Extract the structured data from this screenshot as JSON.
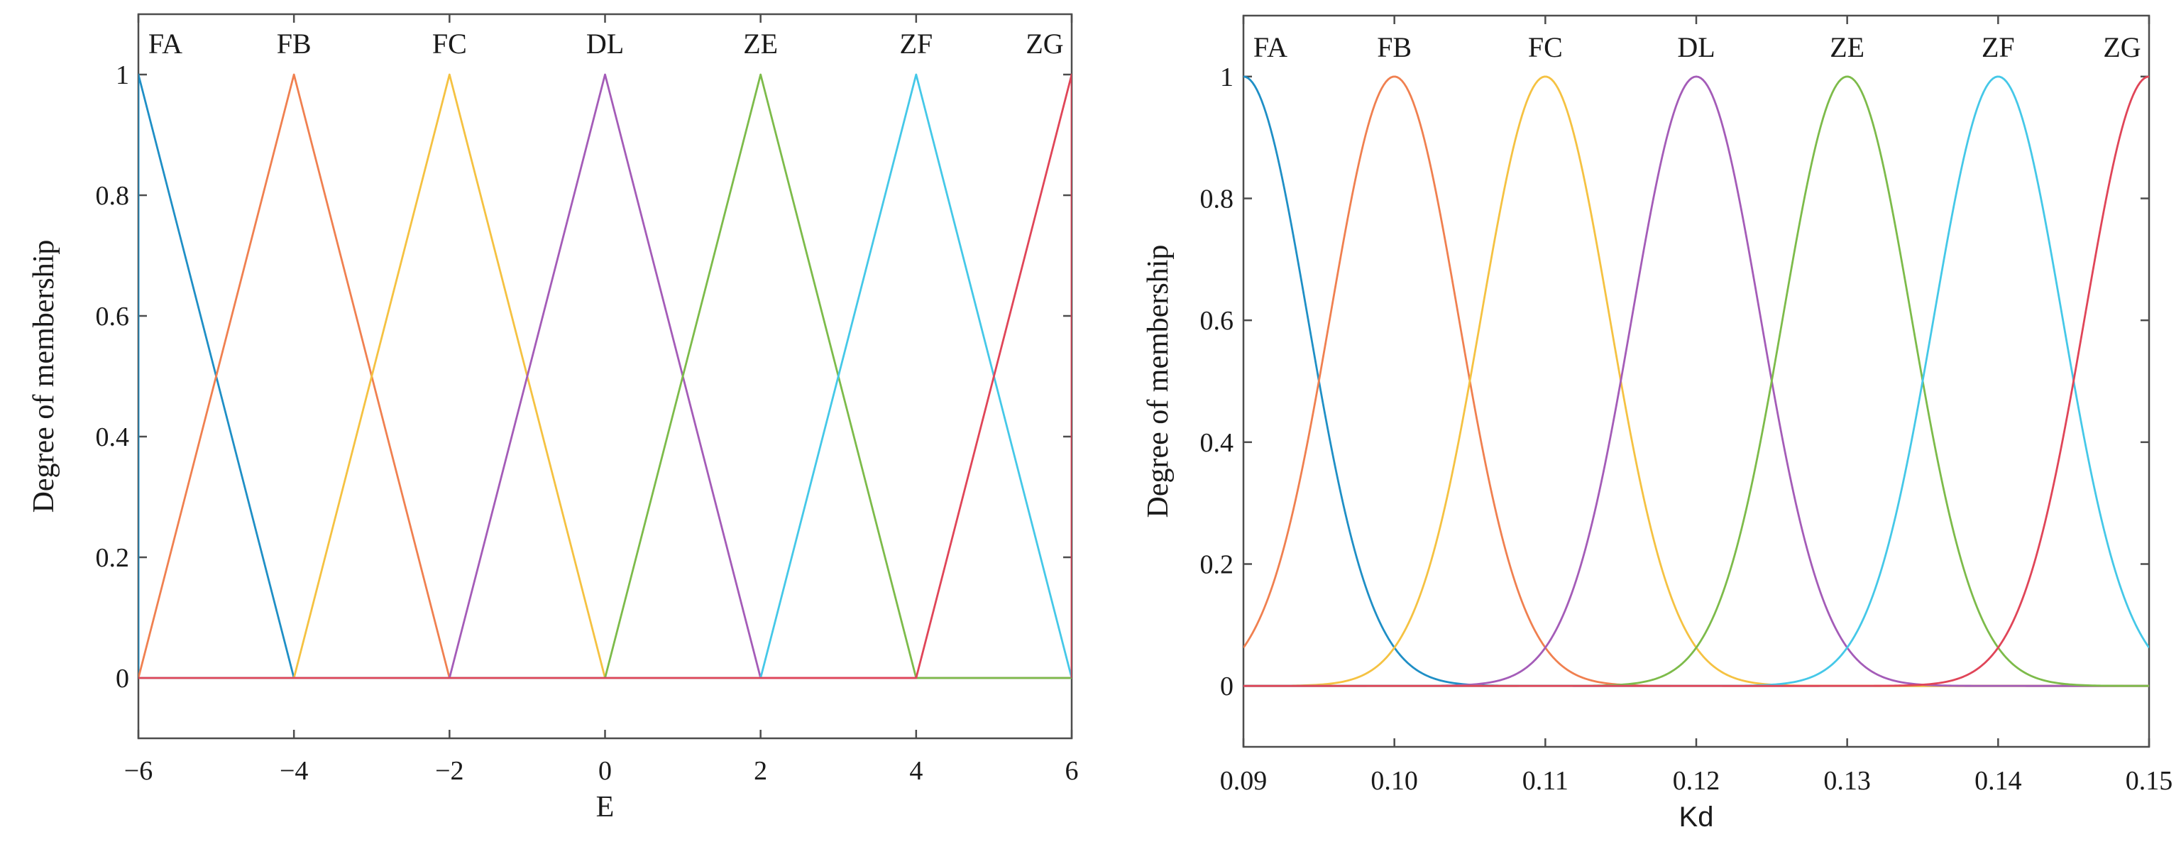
{
  "chart_data": [
    {
      "type": "line",
      "xlabel": "E",
      "ylabel": "Degree of membership",
      "xlim": [
        -6,
        6
      ],
      "ylim": [
        -0.1,
        1.1
      ],
      "x_ticks": [
        "-6",
        "-4",
        "-2",
        "0",
        "2",
        "4",
        "6"
      ],
      "y_ticks": [
        "0",
        "0.2",
        "0.4",
        "0.6",
        "0.8",
        "1"
      ],
      "membership_shape": "triangular",
      "series": [
        {
          "name": "FA",
          "color": "#1f8fc6",
          "x": [
            -6,
            -6,
            -4,
            6
          ],
          "y": [
            0,
            1,
            0,
            0
          ]
        },
        {
          "name": "FB",
          "color": "#f08050",
          "x": [
            -6,
            -4,
            -2,
            6
          ],
          "y": [
            0,
            1,
            0,
            0
          ]
        },
        {
          "name": "FC",
          "color": "#f5c242",
          "x": [
            -6,
            -4,
            -2,
            0,
            6
          ],
          "y": [
            0,
            0,
            1,
            0,
            0
          ]
        },
        {
          "name": "DL",
          "color": "#a45cb8",
          "x": [
            -6,
            -2,
            0,
            2,
            6
          ],
          "y": [
            0,
            0,
            1,
            0,
            0
          ]
        },
        {
          "name": "ZE",
          "color": "#7dbb4a",
          "x": [
            -6,
            0,
            2,
            4,
            6
          ],
          "y": [
            0,
            0,
            1,
            0,
            0
          ]
        },
        {
          "name": "ZF",
          "color": "#45c8e8",
          "x": [
            -6,
            2,
            4,
            6,
            6
          ],
          "y": [
            0,
            0,
            1,
            0,
            0
          ]
        },
        {
          "name": "ZG",
          "color": "#e04558",
          "x": [
            -6,
            4,
            6,
            6
          ],
          "y": [
            0,
            0,
            1,
            0
          ]
        }
      ]
    },
    {
      "type": "line",
      "xlabel": "Kd",
      "ylabel": "Degree of membership",
      "xlim": [
        0.09,
        0.15
      ],
      "ylim": [
        -0.1,
        1.1
      ],
      "x_ticks": [
        "0.09",
        "0.10",
        "0.11",
        "0.12",
        "0.13",
        "0.14",
        "0.15"
      ],
      "y_ticks": [
        "0",
        "0.2",
        "0.4",
        "0.6",
        "0.8",
        "1"
      ],
      "membership_shape": "gaussian",
      "sigma": 0.00425,
      "series": [
        {
          "name": "FA",
          "color": "#1f8fc6",
          "center": 0.09
        },
        {
          "name": "FB",
          "color": "#f08050",
          "center": 0.1
        },
        {
          "name": "FC",
          "color": "#f5c242",
          "center": 0.11
        },
        {
          "name": "DL",
          "color": "#a45cb8",
          "center": 0.12
        },
        {
          "name": "ZE",
          "color": "#7dbb4a",
          "center": 0.13
        },
        {
          "name": "ZF",
          "color": "#45c8e8",
          "center": 0.14
        },
        {
          "name": "ZG",
          "color": "#e04558",
          "center": 0.15
        }
      ]
    }
  ]
}
